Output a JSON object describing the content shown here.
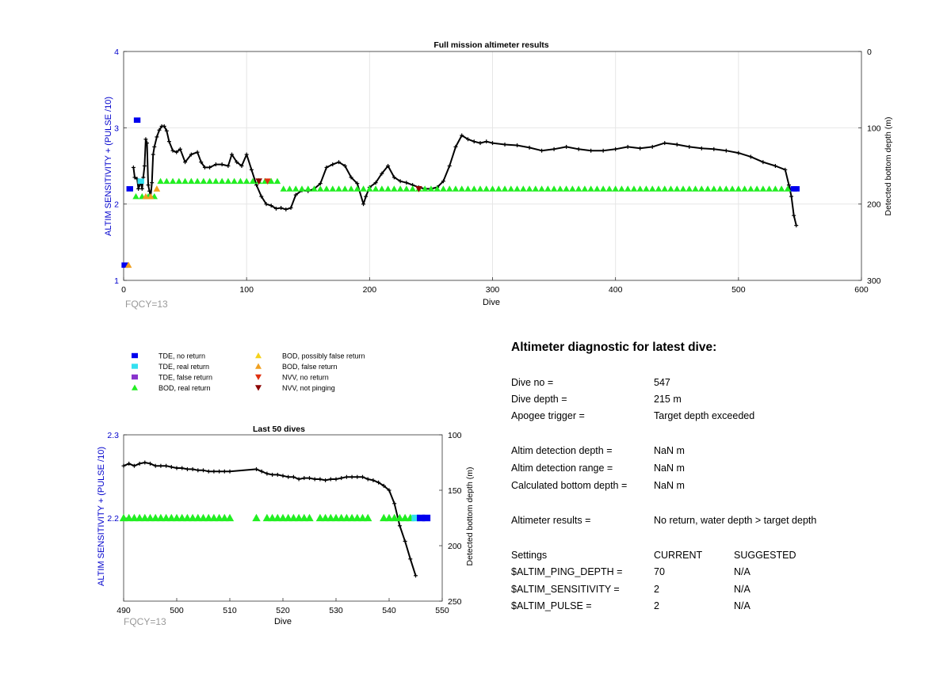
{
  "colors": {
    "tde_no_return": "#0000ee",
    "tde_real_return": "#33e0f0",
    "tde_false_return": "#8833cc",
    "bod_real_return": "#22ee22",
    "bod_possibly_false": "#f5d21a",
    "bod_false_return": "#f0a020",
    "nvv_no_return": "#e03010",
    "nvv_not_pinging": "#8b0000",
    "depth_line": "#000000",
    "left_axis_label": "#0000cc",
    "fqcy": "#999999",
    "grid": "#e6e6e6"
  },
  "legend": [
    {
      "marker": "square",
      "color_key": "tde_no_return",
      "label": "TDE, no return"
    },
    {
      "marker": "square",
      "color_key": "tde_real_return",
      "label": "TDE, real return"
    },
    {
      "marker": "square",
      "color_key": "tde_false_return",
      "label": "TDE, false return"
    },
    {
      "marker": "triangle-up",
      "color_key": "bod_real_return",
      "label": "BOD, real return"
    },
    {
      "marker": "triangle-up",
      "color_key": "bod_possibly_false",
      "label": "BOD, possibly false return"
    },
    {
      "marker": "triangle-up",
      "color_key": "bod_false_return",
      "label": "BOD, false return"
    },
    {
      "marker": "triangle-down",
      "color_key": "nvv_no_return",
      "label": "NVV, no return"
    },
    {
      "marker": "triangle-down",
      "color_key": "nvv_not_pinging",
      "label": "NVV, not pinging"
    }
  ],
  "chart_data": [
    {
      "id": "full",
      "type": "line",
      "title": "Full mission altimeter results",
      "xlabel": "Dive",
      "ylabel": "ALTIM SENSITIVITY + (PULSE /10)",
      "y2label": "Detected bottom depth (m)",
      "annotation": "FQCY=13",
      "xlim": [
        0,
        600
      ],
      "ylim": [
        1,
        4
      ],
      "y2lim": [
        300,
        0
      ],
      "xticks": [
        0,
        100,
        200,
        300,
        400,
        500,
        600
      ],
      "yticks": [
        1,
        2,
        3,
        4
      ],
      "y2ticks": [
        0,
        100,
        200,
        300
      ],
      "grid": true,
      "depth_series": {
        "name": "Detected bottom depth",
        "x": [
          8,
          9,
          11,
          12,
          13,
          14,
          15,
          16,
          17,
          18,
          19,
          20,
          21,
          22,
          23,
          24,
          25,
          27,
          29,
          31,
          33,
          35,
          37,
          40,
          43,
          46,
          50,
          55,
          60,
          63,
          66,
          70,
          75,
          80,
          85,
          88,
          92,
          96,
          100,
          104,
          108,
          112,
          116,
          120,
          124,
          128,
          132,
          136,
          140,
          145,
          150,
          155,
          160,
          165,
          170,
          175,
          180,
          185,
          190,
          195,
          197,
          200,
          205,
          210,
          215,
          220,
          225,
          230,
          235,
          240,
          245,
          250,
          255,
          260,
          265,
          270,
          275,
          280,
          285,
          290,
          295,
          300,
          310,
          320,
          330,
          340,
          350,
          360,
          370,
          380,
          390,
          400,
          410,
          420,
          430,
          440,
          450,
          460,
          470,
          480,
          490,
          500,
          510,
          520,
          530,
          538,
          541,
          543,
          545,
          547
        ],
        "y": [
          152,
          165,
          167,
          180,
          175,
          170,
          180,
          165,
          150,
          115,
          120,
          175,
          183,
          190,
          172,
          135,
          125,
          112,
          103,
          98,
          98,
          104,
          118,
          130,
          132,
          128,
          145,
          135,
          132,
          145,
          152,
          152,
          148,
          148,
          150,
          135,
          145,
          150,
          135,
          155,
          175,
          190,
          200,
          202,
          206,
          205,
          207,
          205,
          188,
          182,
          183,
          180,
          173,
          152,
          148,
          145,
          150,
          165,
          173,
          200,
          190,
          178,
          172,
          160,
          150,
          165,
          170,
          172,
          175,
          178,
          180,
          180,
          178,
          170,
          150,
          125,
          110,
          115,
          118,
          120,
          118,
          120,
          122,
          123,
          126,
          130,
          128,
          125,
          128,
          130,
          130,
          128,
          125,
          127,
          125,
          120,
          122,
          125,
          127,
          128,
          130,
          133,
          138,
          145,
          150,
          155,
          175,
          190,
          215,
          228
        ]
      },
      "markers": [
        {
          "type": "tde_no_return",
          "x": [
            1,
            5,
            11,
            545,
            547
          ],
          "y": [
            1.2,
            2.2,
            3.1,
            2.2,
            2.2
          ]
        },
        {
          "type": "tde_real_return",
          "x": [
            14
          ],
          "y": [
            2.3
          ]
        },
        {
          "type": "bod_real_return",
          "x": [
            10,
            15,
            20,
            25,
            30,
            35,
            40,
            45,
            50,
            55,
            60,
            65,
            70,
            75,
            80,
            85,
            90,
            95,
            100,
            105,
            110,
            115,
            120,
            125,
            130,
            135,
            140,
            145,
            150,
            155,
            160,
            165,
            170,
            175,
            180,
            185,
            190,
            195,
            200,
            205,
            210,
            215,
            220,
            225,
            230,
            235,
            240,
            245,
            250,
            255,
            260,
            265,
            270,
            275,
            280,
            285,
            290,
            295,
            300,
            305,
            310,
            315,
            320,
            325,
            330,
            335,
            340,
            345,
            350,
            355,
            360,
            365,
            370,
            375,
            380,
            385,
            390,
            395,
            400,
            405,
            410,
            415,
            420,
            425,
            430,
            435,
            440,
            445,
            450,
            455,
            460,
            465,
            470,
            475,
            480,
            485,
            490,
            495,
            500,
            505,
            510,
            515,
            520,
            525,
            530,
            535,
            540
          ],
          "y": [
            2.1,
            2.1,
            2.1,
            2.1,
            2.3,
            2.3,
            2.3,
            2.3,
            2.3,
            2.3,
            2.3,
            2.3,
            2.3,
            2.3,
            2.3,
            2.3,
            2.3,
            2.3,
            2.3,
            2.3,
            2.3,
            2.3,
            2.3,
            2.3,
            2.2,
            2.2,
            2.2,
            2.2,
            2.2,
            2.2,
            2.2,
            2.2,
            2.2,
            2.2,
            2.2,
            2.2,
            2.2,
            2.2,
            2.2,
            2.2,
            2.2,
            2.2,
            2.2,
            2.2,
            2.2,
            2.2,
            2.2,
            2.2,
            2.2,
            2.2,
            2.2,
            2.2,
            2.2,
            2.2,
            2.2,
            2.2,
            2.2,
            2.2,
            2.2,
            2.2,
            2.2,
            2.2,
            2.2,
            2.2,
            2.2,
            2.2,
            2.2,
            2.2,
            2.2,
            2.2,
            2.2,
            2.2,
            2.2,
            2.2,
            2.2,
            2.2,
            2.2,
            2.2,
            2.2,
            2.2,
            2.2,
            2.2,
            2.2,
            2.2,
            2.2,
            2.2,
            2.2,
            2.2,
            2.2,
            2.2,
            2.2,
            2.2,
            2.2,
            2.2,
            2.2,
            2.2,
            2.2,
            2.2,
            2.2,
            2.2,
            2.2,
            2.2,
            2.2,
            2.2,
            2.2,
            2.2,
            2.2
          ]
        },
        {
          "type": "bod_possibly_false",
          "x": [
            27
          ],
          "y": [
            2.2
          ]
        },
        {
          "type": "bod_false_return",
          "x": [
            4,
            18,
            22,
            27
          ],
          "y": [
            1.2,
            2.1,
            2.1,
            2.2
          ]
        },
        {
          "type": "nvv_no_return",
          "x": [
            110,
            117,
            240
          ],
          "y": [
            2.3,
            2.3,
            2.2
          ]
        },
        {
          "type": "nvv_not_pinging",
          "x": [
            110,
            240
          ],
          "y": [
            2.3,
            2.2
          ]
        }
      ]
    },
    {
      "id": "last50",
      "type": "line",
      "title": "Last 50 dives",
      "xlabel": "Dive",
      "ylabel": "ALTIM SENSITIVITY + (PULSE /10)",
      "y2label": "Detected bottom depth (m)",
      "annotation": "FQCY=13",
      "xlim": [
        490,
        550
      ],
      "ylim": [
        2.1,
        2.3
      ],
      "yticks": [
        2.2,
        2.3
      ],
      "y2lim": [
        250,
        100
      ],
      "xticks": [
        490,
        500,
        510,
        520,
        530,
        540,
        550
      ],
      "y2ticks": [
        100,
        150,
        200,
        250
      ],
      "grid": false,
      "depth_series": {
        "name": "Detected bottom depth",
        "x": [
          490,
          491,
          492,
          493,
          494,
          495,
          496,
          497,
          498,
          499,
          500,
          501,
          502,
          503,
          504,
          505,
          506,
          507,
          508,
          509,
          510,
          515,
          516,
          517,
          518,
          519,
          520,
          521,
          522,
          523,
          524,
          525,
          526,
          527,
          528,
          529,
          530,
          531,
          532,
          533,
          534,
          535,
          536,
          537,
          538,
          539,
          540,
          541,
          542,
          543,
          544,
          545
        ],
        "y": [
          128,
          126,
          128,
          126,
          125,
          126,
          128,
          128,
          128,
          129,
          130,
          130,
          131,
          131,
          132,
          132,
          133,
          133,
          133,
          133,
          133,
          131,
          133,
          135,
          136,
          136,
          137,
          138,
          138,
          140,
          139,
          139,
          140,
          140,
          141,
          140,
          140,
          139,
          138,
          138,
          138,
          138,
          140,
          141,
          143,
          146,
          150,
          162,
          182,
          196,
          212,
          227
        ]
      },
      "markers": [
        {
          "type": "bod_real_return",
          "x": [
            490,
            491,
            492,
            493,
            494,
            495,
            496,
            497,
            498,
            499,
            500,
            501,
            502,
            503,
            504,
            505,
            506,
            507,
            508,
            509,
            510,
            515,
            517,
            518,
            519,
            520,
            521,
            522,
            523,
            524,
            525,
            527,
            528,
            529,
            530,
            531,
            532,
            533,
            534,
            535,
            536,
            539,
            540,
            541,
            542,
            543,
            544
          ],
          "y": [
            2.2,
            2.2,
            2.2,
            2.2,
            2.2,
            2.2,
            2.2,
            2.2,
            2.2,
            2.2,
            2.2,
            2.2,
            2.2,
            2.2,
            2.2,
            2.2,
            2.2,
            2.2,
            2.2,
            2.2,
            2.2,
            2.2,
            2.2,
            2.2,
            2.2,
            2.2,
            2.2,
            2.2,
            2.2,
            2.2,
            2.2,
            2.2,
            2.2,
            2.2,
            2.2,
            2.2,
            2.2,
            2.2,
            2.2,
            2.2,
            2.2,
            2.2,
            2.2,
            2.2,
            2.2,
            2.2,
            2.2
          ]
        },
        {
          "type": "tde_real_return",
          "x": [
            545
          ],
          "y": [
            2.2
          ]
        },
        {
          "type": "tde_no_return",
          "x": [
            546,
            547
          ],
          "y": [
            2.2,
            2.2
          ]
        }
      ]
    }
  ],
  "diagnostic": {
    "title": "Altimeter diagnostic for latest dive:",
    "rows": [
      {
        "label": "Dive no =",
        "value": "547"
      },
      {
        "label": "Dive depth =",
        "value": "215 m"
      },
      {
        "label": "Apogee trigger =",
        "value": "Target depth exceeded"
      },
      {
        "label": "Altim detection depth =",
        "value": "NaN m"
      },
      {
        "label": "Altim detection range =",
        "value": "NaN m"
      },
      {
        "label": "Calculated bottom depth =",
        "value": "NaN m"
      },
      {
        "label": "Altimeter results =",
        "value": "No return, water depth > target depth"
      }
    ],
    "settings": {
      "header": [
        "Settings",
        "CURRENT",
        "SUGGESTED"
      ],
      "rows": [
        {
          "name": "$ALTIM_PING_DEPTH =",
          "current": "70",
          "suggested": "N/A"
        },
        {
          "name": "$ALTIM_SENSITIVITY =",
          "current": "2",
          "suggested": "N/A"
        },
        {
          "name": "$ALTIM_PULSE =",
          "current": "2",
          "suggested": "N/A"
        }
      ]
    }
  }
}
